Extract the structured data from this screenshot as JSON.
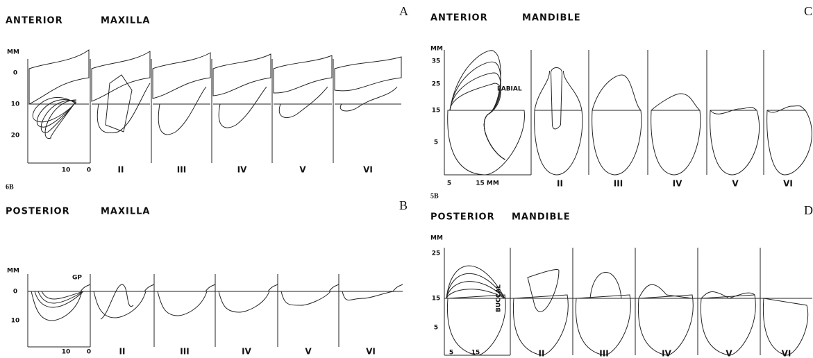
{
  "panels": [
    {
      "letter": "A",
      "title": [
        "ANTERIOR",
        "MAXILLA"
      ],
      "unit": "MM",
      "y_labels": [
        "0",
        "10",
        "20"
      ],
      "x_labels": [
        "10",
        "0"
      ],
      "classes": [
        "II",
        "III",
        "IV",
        "V",
        "VI"
      ]
    },
    {
      "figure_label": "6B",
      "letter": "B",
      "title": [
        "POSTERIOR",
        "MAXILLA"
      ],
      "unit": "MM",
      "annotation": "GP",
      "y_labels": [
        "0",
        "10"
      ],
      "x_labels": [
        "10",
        "0"
      ],
      "classes": [
        "II",
        "III",
        "IV",
        "V",
        "VI"
      ]
    },
    {
      "letter": "C",
      "title": [
        "ANTERIOR",
        "MANDIBLE"
      ],
      "unit": "MM",
      "annotation": "LABIAL",
      "y_labels": [
        "35",
        "25",
        "15",
        "5"
      ],
      "x_labels": [
        "5",
        "15 MM"
      ],
      "classes": [
        "II",
        "III",
        "IV",
        "V",
        "VI"
      ]
    },
    {
      "figure_label": "5B",
      "letter": "D",
      "title": [
        "POSTERIOR",
        "MANDIBLE"
      ],
      "unit": "MM",
      "annotation": "BUCCAL",
      "y_labels": [
        "25",
        "15",
        "5"
      ],
      "x_labels": [
        "5",
        "15"
      ],
      "classes": [
        "II",
        "III",
        "IV",
        "V",
        "VI"
      ]
    }
  ]
}
